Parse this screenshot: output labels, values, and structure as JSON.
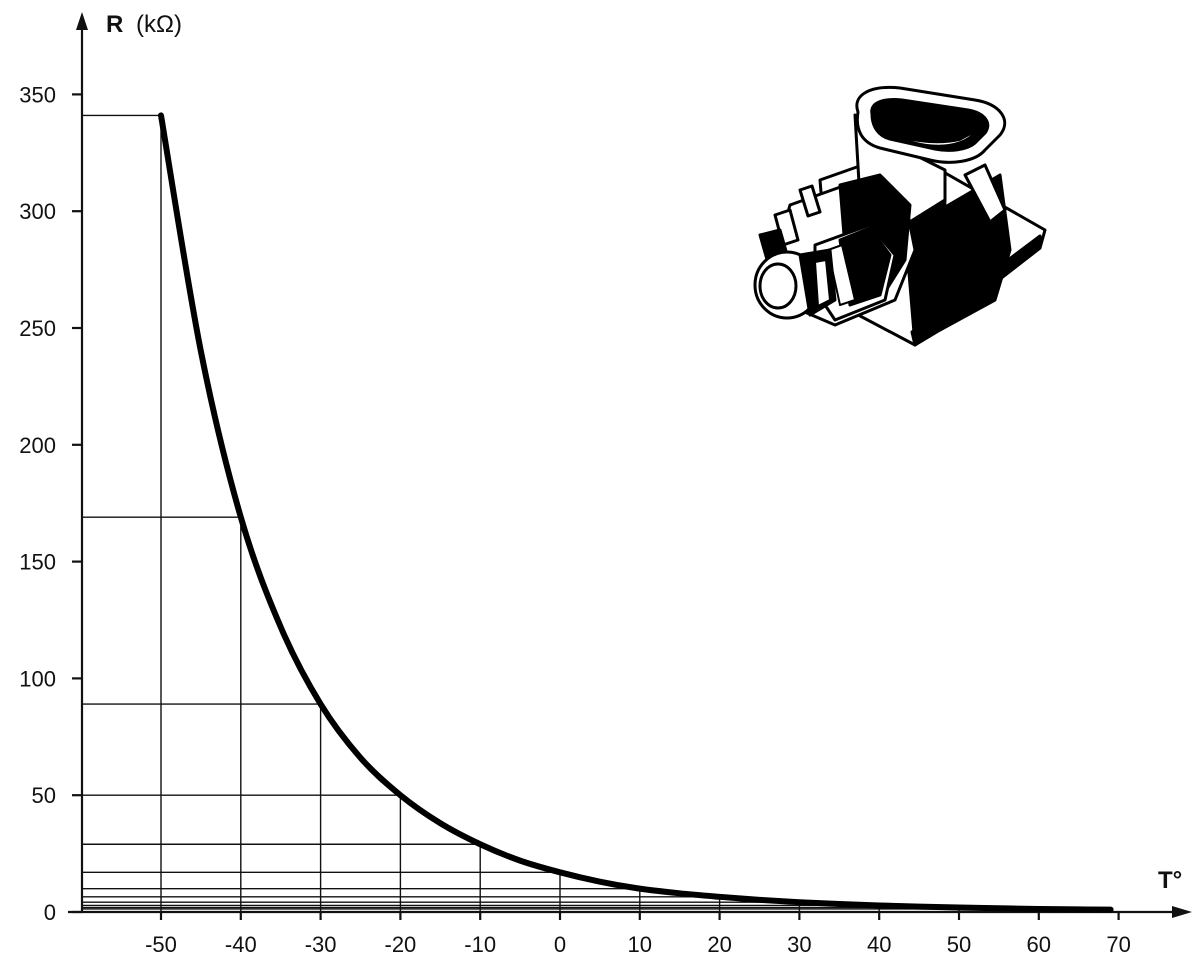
{
  "chart_data": {
    "type": "line",
    "title": "",
    "ylabel_symbol": "R",
    "ylabel_unit": "(kΩ)",
    "xlabel": "T°",
    "x_ticks": [
      -50,
      -40,
      -30,
      -20,
      -10,
      0,
      10,
      20,
      30,
      40,
      50,
      60,
      70
    ],
    "y_ticks": [
      0,
      50,
      100,
      150,
      200,
      250,
      300,
      350
    ],
    "xlim": [
      -60,
      70
    ],
    "ylim": [
      0,
      350
    ],
    "grid": "reference lines from curve points to both axes",
    "series": [
      {
        "x": [
          -50,
          -45,
          -40,
          -35,
          -30,
          -25,
          -20,
          -15,
          -10,
          -5,
          0,
          5,
          10,
          15,
          20,
          25,
          30,
          35,
          40,
          45,
          50,
          55,
          60,
          65,
          69
        ],
        "y": [
          341,
          240,
          169,
          122,
          89,
          66,
          50,
          38,
          29,
          22,
          17,
          13,
          10,
          8,
          6.5,
          5.2,
          4.2,
          3.4,
          2.8,
          2.3,
          1.9,
          1.6,
          1.3,
          1.1,
          1.0
        ]
      }
    ],
    "reference_points": [
      {
        "x": -50,
        "y": 341
      },
      {
        "x": -40,
        "y": 169
      },
      {
        "x": -30,
        "y": 89
      },
      {
        "x": -20,
        "y": 50
      },
      {
        "x": -10,
        "y": 29
      },
      {
        "x": 0,
        "y": 17
      },
      {
        "x": 10,
        "y": 10
      },
      {
        "x": 20,
        "y": 6.5
      },
      {
        "x": 30,
        "y": 4.2
      },
      {
        "x": 40,
        "y": 2.8
      },
      {
        "x": 50,
        "y": 1.9
      },
      {
        "x": 60,
        "y": 1.3
      }
    ]
  },
  "illustration": {
    "icon": "temperature-sensor-connector-icon"
  }
}
